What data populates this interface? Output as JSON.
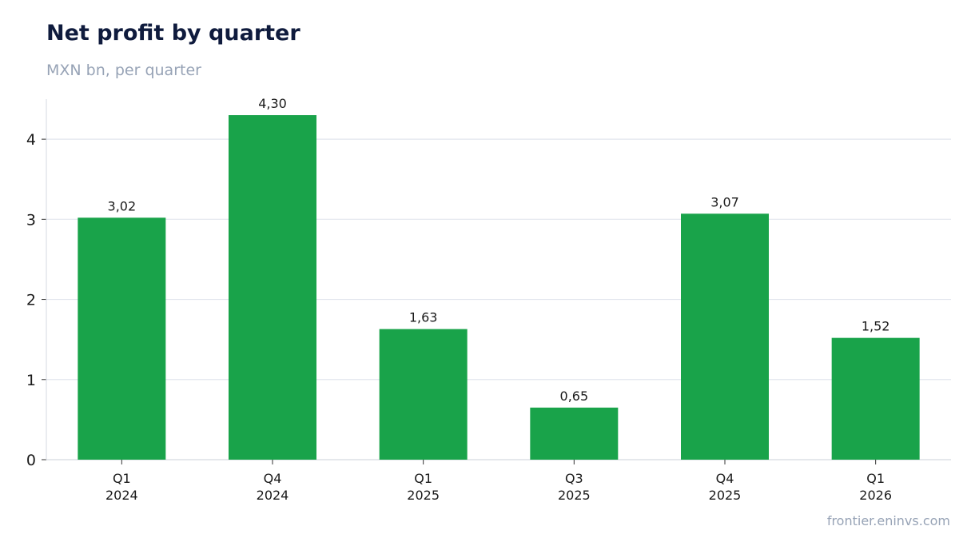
{
  "header": {
    "title": "Net profit by quarter",
    "subtitle": "MXN bn, per quarter"
  },
  "footer": {
    "source": "frontier.eninvs.com"
  },
  "colors": {
    "bar": "#19a34a",
    "grid": "#e2e6ee",
    "title": "#0f1b3d",
    "muted": "#97a3b6"
  },
  "chart_data": {
    "type": "bar",
    "title": "Net profit by quarter",
    "subtitle": "MXN bn, per quarter",
    "categories": [
      [
        "Q1",
        "2024"
      ],
      [
        "Q4",
        "2024"
      ],
      [
        "Q1",
        "2025"
      ],
      [
        "Q3",
        "2025"
      ],
      [
        "Q4",
        "2025"
      ],
      [
        "Q1",
        "2026"
      ]
    ],
    "values": [
      3.02,
      4.3,
      1.63,
      0.65,
      3.07,
      1.52
    ],
    "value_labels": [
      "3,02",
      "4,30",
      "1,63",
      "0,65",
      "3,07",
      "1,52"
    ],
    "yticks": [
      0,
      1,
      2,
      3,
      4
    ],
    "ylim": [
      0,
      4.5
    ],
    "grid": true,
    "xlabel": "",
    "ylabel": ""
  }
}
